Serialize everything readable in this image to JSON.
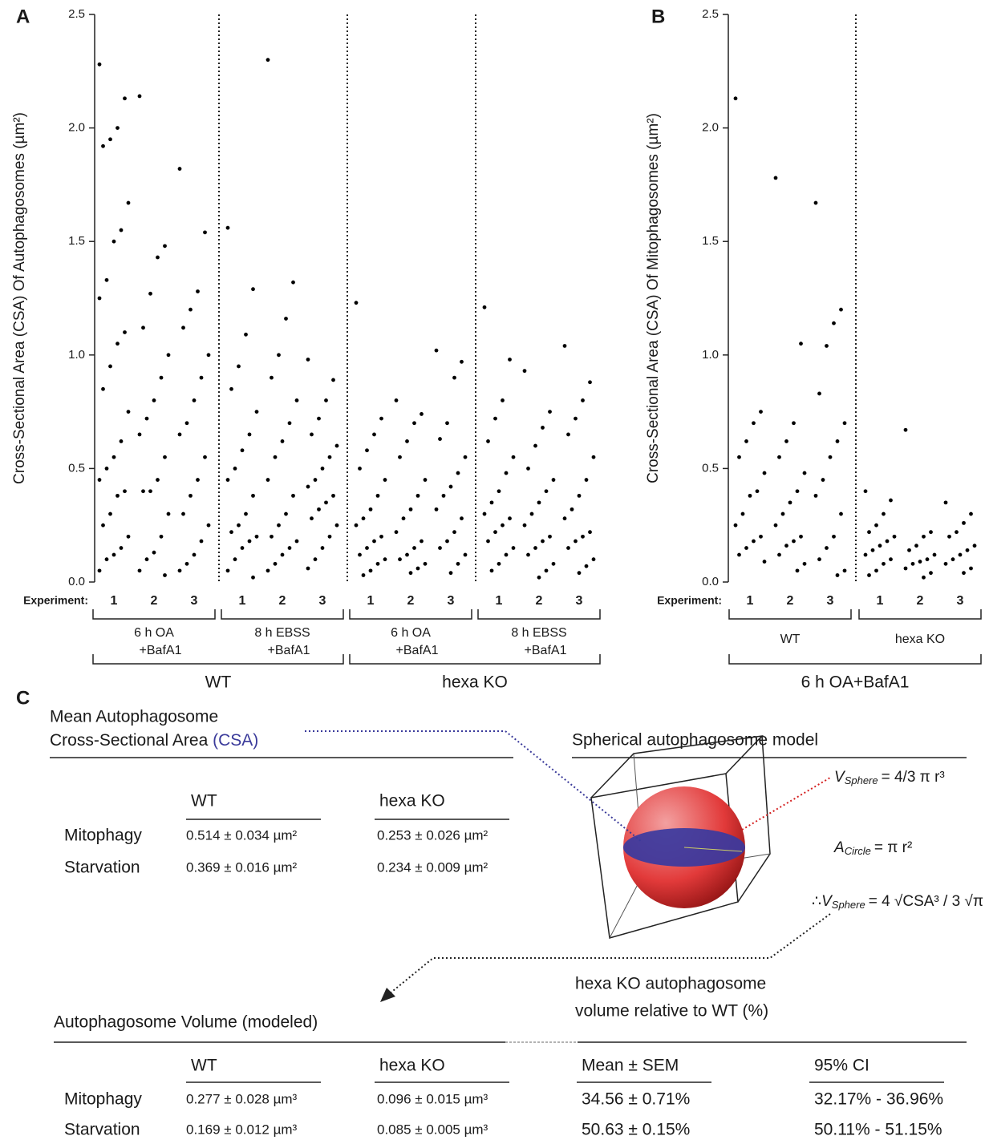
{
  "chart_data": [
    {
      "type": "scatter",
      "panel": "A",
      "y_label": "Cross-Sectional Area (CSA) Of Autophagosomes (µm²)",
      "x_label": "Experiment:",
      "ylim": [
        0,
        2.5
      ],
      "yticks": [
        {
          "value": 0,
          "label": "0.0"
        },
        0.5,
        {
          "value": 1,
          "label": "1.0"
        },
        1.5,
        {
          "value": 2,
          "label": "2.0"
        },
        2.5
      ],
      "categories": [
        "1",
        "2",
        "3",
        "1",
        "2",
        "3",
        "1",
        "2",
        "3",
        "1",
        "2",
        "3"
      ],
      "groups": [
        [
          "6 h OA",
          "+BafA1"
        ],
        [
          "8 h EBSS",
          "+BafA1"
        ],
        [
          "6 h OA",
          "+BafA1"
        ],
        [
          "8 h EBSS",
          "+BafA1"
        ]
      ],
      "supergroups": [
        "WT",
        "hexa KO"
      ],
      "color": "#000000",
      "values": [
        [
          2.28,
          2.13,
          2.0,
          1.95,
          1.92,
          1.67,
          1.55,
          1.5,
          1.33,
          1.25,
          1.1,
          1.05,
          0.95,
          0.85,
          0.75,
          0.62,
          0.55,
          0.5,
          0.45,
          0.4,
          0.38,
          0.3,
          0.25,
          0.2,
          0.15,
          0.12,
          0.1,
          0.05
        ],
        [
          2.14,
          1.48,
          1.43,
          1.27,
          1.12,
          1.0,
          0.9,
          0.8,
          0.72,
          0.65,
          0.55,
          0.45,
          0.4,
          0.4,
          0.3,
          0.2,
          0.13,
          0.1,
          0.05,
          0.03
        ],
        [
          1.82,
          1.54,
          1.28,
          1.2,
          1.12,
          1.0,
          0.9,
          0.8,
          0.7,
          0.65,
          0.55,
          0.45,
          0.38,
          0.3,
          0.25,
          0.18,
          0.12,
          0.08,
          0.05
        ],
        [
          1.56,
          1.29,
          1.09,
          0.95,
          0.85,
          0.75,
          0.65,
          0.58,
          0.5,
          0.45,
          0.38,
          0.3,
          0.25,
          0.22,
          0.2,
          0.18,
          0.15,
          0.1,
          0.05,
          0.02
        ],
        [
          2.3,
          1.32,
          1.16,
          1.0,
          0.9,
          0.8,
          0.7,
          0.62,
          0.55,
          0.45,
          0.38,
          0.3,
          0.25,
          0.2,
          0.18,
          0.15,
          0.12,
          0.08,
          0.05
        ],
        [
          0.98,
          0.89,
          0.8,
          0.72,
          0.65,
          0.6,
          0.55,
          0.5,
          0.45,
          0.42,
          0.38,
          0.35,
          0.32,
          0.28,
          0.25,
          0.2,
          0.15,
          0.1,
          0.06
        ],
        [
          1.23,
          0.72,
          0.65,
          0.58,
          0.5,
          0.45,
          0.38,
          0.32,
          0.28,
          0.25,
          0.2,
          0.18,
          0.15,
          0.12,
          0.1,
          0.08,
          0.05,
          0.03
        ],
        [
          0.8,
          0.74,
          0.7,
          0.62,
          0.55,
          0.45,
          0.38,
          0.32,
          0.28,
          0.22,
          0.18,
          0.15,
          0.12,
          0.1,
          0.08,
          0.06,
          0.04
        ],
        [
          1.02,
          0.97,
          0.9,
          0.7,
          0.63,
          0.55,
          0.48,
          0.42,
          0.38,
          0.32,
          0.28,
          0.22,
          0.18,
          0.15,
          0.12,
          0.08,
          0.04
        ],
        [
          1.21,
          0.98,
          0.8,
          0.72,
          0.62,
          0.55,
          0.48,
          0.4,
          0.35,
          0.3,
          0.28,
          0.25,
          0.22,
          0.18,
          0.15,
          0.12,
          0.08,
          0.05
        ],
        [
          0.93,
          0.75,
          0.68,
          0.6,
          0.5,
          0.45,
          0.4,
          0.35,
          0.3,
          0.25,
          0.2,
          0.18,
          0.15,
          0.12,
          0.08,
          0.05,
          0.02
        ],
        [
          1.04,
          0.88,
          0.8,
          0.72,
          0.65,
          0.55,
          0.45,
          0.38,
          0.32,
          0.28,
          0.22,
          0.2,
          0.18,
          0.15,
          0.1,
          0.07,
          0.04
        ]
      ]
    },
    {
      "type": "scatter",
      "panel": "B",
      "y_label": "Cross-Sectional Area (CSA) Of Mitophagosomes (µm²)",
      "x_label": "Experiment:",
      "ylim": [
        0,
        2.5
      ],
      "yticks": [
        {
          "value": 0,
          "label": "0.0"
        },
        0.5,
        {
          "value": 1,
          "label": "1.0"
        },
        1.5,
        {
          "value": 2,
          "label": "2.0"
        },
        2.5
      ],
      "categories": [
        "1",
        "2",
        "3",
        "1",
        "2",
        "3"
      ],
      "groups": [
        [
          "WT"
        ],
        [
          "hexa KO"
        ]
      ],
      "supergroups": [
        "6 h OA+BafA1"
      ],
      "color": "#000000",
      "values": [
        [
          2.13,
          0.75,
          0.7,
          0.62,
          0.55,
          0.48,
          0.4,
          0.38,
          0.3,
          0.25,
          0.2,
          0.18,
          0.15,
          0.12,
          0.09
        ],
        [
          1.78,
          1.05,
          0.7,
          0.62,
          0.55,
          0.48,
          0.4,
          0.35,
          0.3,
          0.25,
          0.2,
          0.18,
          0.16,
          0.12,
          0.08,
          0.05
        ],
        [
          1.67,
          1.2,
          1.14,
          1.04,
          0.83,
          0.7,
          0.62,
          0.55,
          0.45,
          0.38,
          0.3,
          0.2,
          0.15,
          0.1,
          0.05,
          0.03
        ],
        [
          0.4,
          0.36,
          0.3,
          0.25,
          0.22,
          0.2,
          0.18,
          0.16,
          0.14,
          0.12,
          0.1,
          0.08,
          0.05,
          0.03
        ],
        [
          0.67,
          0.22,
          0.2,
          0.16,
          0.14,
          0.12,
          0.1,
          0.09,
          0.08,
          0.06,
          0.04,
          0.02
        ],
        [
          0.35,
          0.3,
          0.26,
          0.22,
          0.2,
          0.16,
          0.14,
          0.12,
          0.1,
          0.08,
          0.06,
          0.04
        ]
      ]
    }
  ],
  "panel_c": {
    "label": "C",
    "csa_title": {
      "line1": "Mean Autophagosome",
      "line2": "Cross-Sectional Area",
      "abbrev": "(CSA)"
    },
    "model_title": "Spherical autophagosome model",
    "csa_table": {
      "headers": [
        "WT",
        "hexa KO"
      ],
      "rows": [
        [
          "Mitophagy",
          "0.514 ± 0.034 µm²",
          "0.253 ± 0.026 µm²"
        ],
        [
          "Starvation",
          "0.369 ± 0.016 µm²",
          "0.234 ± 0.009 µm²"
        ]
      ]
    },
    "formulas": [
      {
        "var": "V",
        "sub": "Sphere",
        "expr": "= 4/3 π r³"
      },
      {
        "var": "A",
        "sub": "Circle",
        "expr": "= π r²"
      },
      {
        "prefix": "∴",
        "var": "V",
        "sub": "Sphere",
        "expr": "= 4 √CSA³ / 3 √π"
      }
    ],
    "relative_title": [
      "hexa KO autophagosome",
      "volume relative to WT (%)"
    ],
    "volume_title": "Autophagosome Volume (modeled)",
    "volume_table": {
      "headers": [
        "WT",
        "hexa KO",
        "Mean ± SEM",
        "95% CI"
      ],
      "rows": [
        [
          "Mitophagy",
          "0.277 ± 0.028 µm³",
          "0.096 ± 0.015 µm³",
          "34.56 ± 0.71%",
          "32.17% - 36.96%"
        ],
        [
          "Starvation",
          "0.169 ± 0.012 µm³",
          "0.085 ± 0.005 µm³",
          "50.63 ± 0.15%",
          "50.11% - 51.15%"
        ]
      ]
    }
  }
}
